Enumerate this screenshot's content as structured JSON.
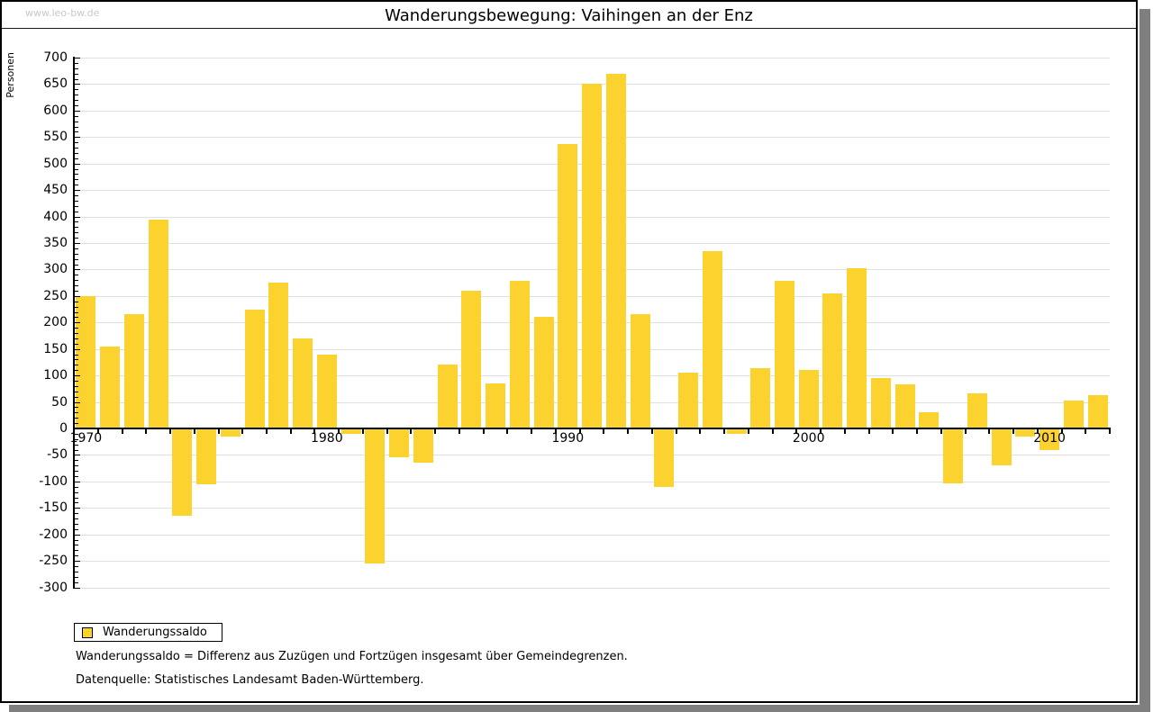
{
  "header": {
    "watermark": "www.leo-bw.de",
    "title": "Wanderungsbewegung: Vaihingen an der Enz"
  },
  "chart_data": {
    "type": "bar",
    "title": "Wanderungsbewegung: Vaihingen an der Enz",
    "ylabel": "Personen",
    "xlabel": "",
    "ylim": [
      -300,
      700
    ],
    "ytick_step": 50,
    "y_minor_step": 10,
    "grid": true,
    "legend_position": "bottom-left",
    "bar_color": "#FCD32E",
    "gridline_color": "#e0e0e0",
    "series_name": "Wanderungssaldo",
    "categories": [
      1970,
      1971,
      1972,
      1973,
      1974,
      1975,
      1976,
      1977,
      1978,
      1979,
      1980,
      1981,
      1982,
      1983,
      1984,
      1985,
      1986,
      1987,
      1988,
      1989,
      1990,
      1991,
      1992,
      1993,
      1994,
      1995,
      1996,
      1997,
      1998,
      1999,
      2000,
      2001,
      2002,
      2003,
      2004,
      2005,
      2006,
      2007,
      2008,
      2009,
      2010,
      2011,
      2012
    ],
    "values": [
      250,
      155,
      215,
      395,
      -165,
      -105,
      -15,
      225,
      275,
      170,
      140,
      -10,
      -255,
      -55,
      -65,
      120,
      260,
      85,
      278,
      210,
      537,
      650,
      670,
      215,
      -110,
      105,
      335,
      -10,
      113,
      278,
      110,
      255,
      303,
      95,
      83,
      30,
      -103,
      66,
      -70,
      -15,
      -40,
      53,
      63
    ],
    "y_tick_labels": [
      "700",
      "650",
      "600",
      "550",
      "500",
      "450",
      "400",
      "350",
      "300",
      "250",
      "200",
      "150",
      "100",
      "50",
      "0",
      "-50",
      "-100",
      "-150",
      "-200",
      "-250",
      "-300"
    ],
    "x_axis_labels": [
      "1970",
      "1980",
      "1990",
      "2000",
      "2010"
    ]
  },
  "legend": {
    "label": "Wanderungssaldo"
  },
  "footnotes": [
    "Wanderungssaldo = Differenz aus Zuzügen und Fortzügen insgesamt über Gemeindegrenzen.",
    "Datenquelle: Statistisches Landesamt Baden-Württemberg."
  ]
}
